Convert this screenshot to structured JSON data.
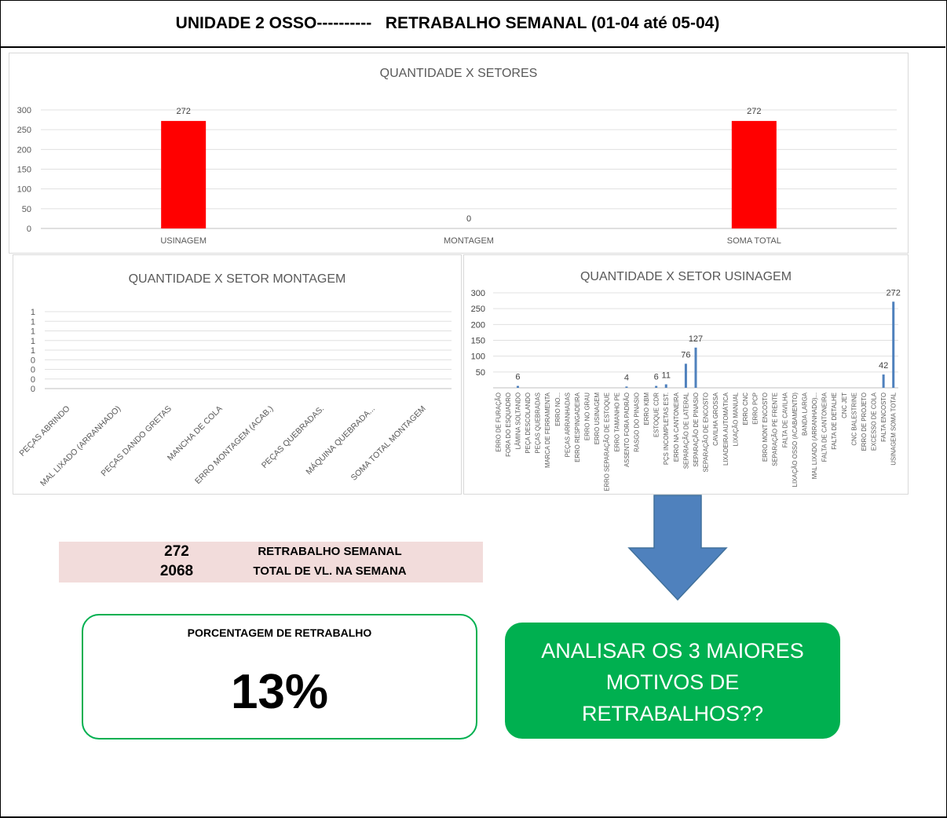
{
  "header": {
    "title": "UNIDADE 2 OSSO----------   RETRABALHO SEMANAL (01-04 até 05-04)"
  },
  "chart_data": [
    {
      "type": "bar",
      "title": "QUANTIDADE X SETORES",
      "categories": [
        "USINAGEM",
        "MONTAGEM",
        "SOMA TOTAL"
      ],
      "values": [
        272,
        0,
        272
      ],
      "ylim": [
        0,
        300
      ],
      "yticks": [
        0,
        50,
        100,
        150,
        200,
        250,
        300
      ],
      "color": "#ff0000",
      "data_labels": true,
      "grid": true
    },
    {
      "type": "bar",
      "title": "QUANTIDADE X SETOR MONTAGEM",
      "categories": [
        "PEÇAS ABRINDO",
        "MAL LIXADO (ARRANHADO)",
        "PEÇAS DANDO GRETAS",
        "MANCHA DE COLA",
        "ERRO MONTAGEM (ACAB.)",
        "PEÇAS QUEBRADAS.",
        "MÁQUINA QUEBRADA...",
        "SOMA TOTAL MONTAGEM"
      ],
      "values": [
        0,
        0,
        0,
        0,
        0,
        0,
        0,
        0
      ],
      "ytick_labels": [
        "1",
        "1",
        "1",
        "1",
        "1",
        "0",
        "0",
        "0",
        "0"
      ],
      "grid": true
    },
    {
      "type": "bar",
      "title": "QUANTIDADE X SETOR USINAGEM",
      "categories": [
        "ERRO DE FURAÇÃO",
        "FORA DO ESQUADRO",
        "LÂMINA SOLTANDO",
        "PEÇA DESCOLANDO",
        "PEÇAS QUEBRADAS",
        "MARCA DE FERRAMENTA",
        "ERRO NO...",
        "PEÇAS ARRANHADAS",
        "ERRO RESPINGADEIRA",
        "ERRO NO GRAU",
        "ERRO USINAGEM",
        "ERRO SEPARAÇÃO DE ESTOQUE",
        "ERRO TAMANHO PE",
        "ASSENTO FORA PADRÃO",
        "RASGO DO PINASIO",
        "ERRO KBM",
        "ESTOQUE CDR",
        "PÇS INCOMPLETAS EST.",
        "ERRO NA CANTONEIRA",
        "SEPARAÇÃO DE LATERAL",
        "SEPARAÇÃO DE PINASIO",
        "SEPARAÇÃO DE ENCOSTO",
        "CAVILHA GROSSA",
        "LIXADEIRA AUTOMÁTICA",
        "LIXAÇÃO MANUAL",
        "ERRO CNC",
        "ERRO PCP",
        "ERRO MONT ENCOSTO",
        "SEPARAÇÃO PE FRENTE",
        "FALTA DE CAVILHA",
        "LIXAÇÃO OSSO (ACABAMENTO)",
        "BANDA LARGA",
        "MAL LIXADO (ARRANHADO)...",
        "FALTA DE CANTONEIRA",
        "FALTA DE DETALHE",
        "CNC JET",
        "CNC BALESTRINE",
        "ERRO DE PROJETO",
        "EXCESSO DE COLA",
        "FALTA ENCOSTO",
        "USINAGEM SOMA TOTAL"
      ],
      "values": [
        0,
        0,
        6,
        0,
        0,
        0,
        0,
        0,
        0,
        0,
        0,
        0,
        0,
        4,
        0,
        0,
        6,
        11,
        0,
        76,
        127,
        0,
        0,
        0,
        0,
        0,
        0,
        0,
        0,
        0,
        0,
        0,
        0,
        0,
        0,
        0,
        0,
        0,
        0,
        42,
        272
      ],
      "labels_shown": [
        null,
        null,
        "6",
        null,
        null,
        null,
        null,
        null,
        null,
        null,
        null,
        null,
        null,
        "4",
        null,
        null,
        "6",
        "11",
        null,
        "76",
        "127",
        null,
        null,
        null,
        null,
        null,
        null,
        null,
        null,
        null,
        null,
        null,
        null,
        null,
        null,
        null,
        null,
        null,
        null,
        "42",
        "272"
      ],
      "ylim": [
        0,
        300
      ],
      "yticks": [
        50,
        100,
        150,
        200,
        250,
        300
      ],
      "color": "#4f81bd",
      "grid": true
    }
  ],
  "summary": {
    "rows": [
      {
        "value": "272",
        "label": "RETRABALHO SEMANAL"
      },
      {
        "value": "2068",
        "label": "TOTAL DE VL. NA SEMANA"
      }
    ]
  },
  "percentage": {
    "title": "PORCENTAGEM DE RETRABALHO",
    "value": "13%"
  },
  "callout": {
    "text": "ANALISAR OS 3 MAIORES MOTIVOS DE RETRABALHOS??"
  },
  "colors": {
    "accent_green": "#00b050",
    "bar_red": "#ff0000",
    "bar_blue": "#4f81bd",
    "arrow": "#4f81bd",
    "summary_bg": "#f2dcdb"
  }
}
